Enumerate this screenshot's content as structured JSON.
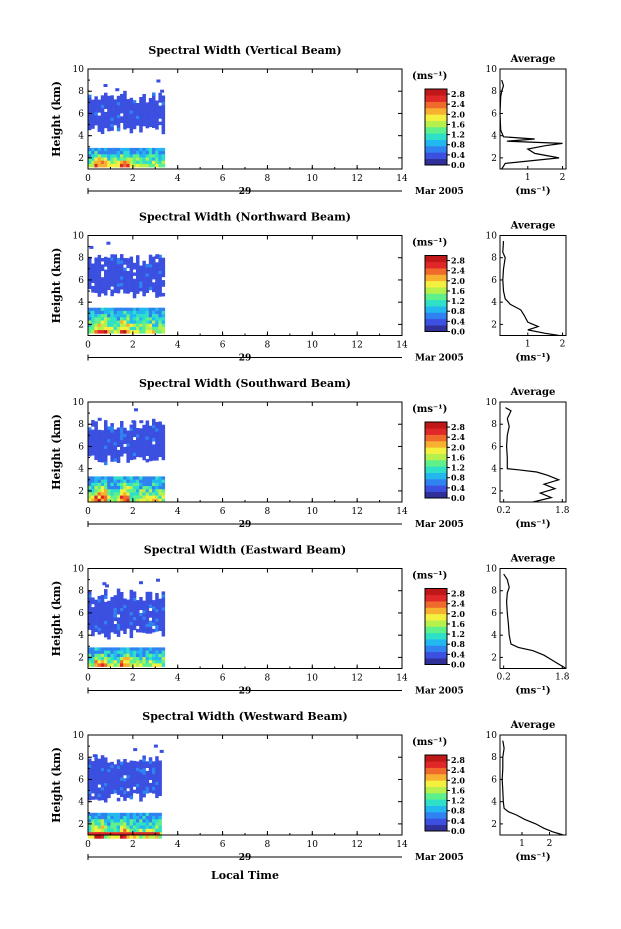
{
  "chart_data": {
    "type": "heatmap",
    "x_axis": {
      "label": "Local Time",
      "range": [
        0,
        14
      ],
      "ticks": [
        "0",
        "2",
        "4",
        "6",
        "8",
        "10",
        "12",
        "14"
      ],
      "date_label": "29",
      "month_label": "Mar 2005"
    },
    "y_axis": {
      "label": "Height (km)",
      "range": [
        1,
        10
      ],
      "ticks": [
        "2",
        "4",
        "6",
        "8",
        "10"
      ]
    },
    "colorbar": {
      "unit": "(ms⁻¹)",
      "ticks": [
        "2.8",
        "2.4",
        "2.0",
        "1.6",
        "1.2",
        "0.8",
        "0.4",
        "0.0"
      ],
      "range": [
        0,
        3.0
      ],
      "colors": [
        "#30309a",
        "#3b4fe0",
        "#2f82f0",
        "#23b7f0",
        "#2ee0c8",
        "#5ef08a",
        "#b6f04c",
        "#f4f040",
        "#f8b030",
        "#f06a2c",
        "#e02828",
        "#c01818"
      ]
    },
    "average_panel": {
      "title": "Average",
      "unit": "(ms⁻¹)",
      "y_ticks": [
        "2",
        "4",
        "6",
        "8",
        "10"
      ]
    },
    "panels": [
      {
        "title": "Spectral Width (Vertical Beam)",
        "avg_x_ticks": [
          "1",
          "2"
        ],
        "avg_x_range": [
          0.2,
          2.1
        ],
        "data_extent_hours": [
          0.0,
          3.3
        ],
        "upper_layer_km": [
          4.8,
          7.5
        ],
        "lower_layer_km": [
          1.2,
          2.9
        ],
        "avg_profile": [
          [
            1.0,
            0.25
          ],
          [
            1.5,
            0.35
          ],
          [
            2.0,
            1.9
          ],
          [
            2.4,
            1.2
          ],
          [
            2.8,
            1.0
          ],
          [
            3.1,
            1.5
          ],
          [
            3.3,
            2.0
          ],
          [
            3.5,
            0.4
          ],
          [
            3.7,
            1.2
          ],
          [
            3.9,
            0.3
          ],
          [
            4.5,
            0.22
          ],
          [
            6.0,
            0.2
          ],
          [
            7.5,
            0.22
          ],
          [
            8.0,
            0.25
          ],
          [
            8.5,
            0.3
          ],
          [
            9.0,
            0.25
          ]
        ]
      },
      {
        "title": "Spectral Width (Northward Beam)",
        "avg_x_ticks": [
          "1",
          "2"
        ],
        "avg_x_range": [
          0.2,
          2.1
        ],
        "data_extent_hours": [
          0.0,
          3.3
        ],
        "upper_layer_km": [
          5.0,
          7.8
        ],
        "lower_layer_km": [
          1.2,
          3.5
        ],
        "avg_profile": [
          [
            1.0,
            1.9
          ],
          [
            1.2,
            1.5
          ],
          [
            1.5,
            1.0
          ],
          [
            1.8,
            1.3
          ],
          [
            2.2,
            1.0
          ],
          [
            2.8,
            0.9
          ],
          [
            3.3,
            0.8
          ],
          [
            3.8,
            0.5
          ],
          [
            4.3,
            0.35
          ],
          [
            5.0,
            0.3
          ],
          [
            6.0,
            0.28
          ],
          [
            7.0,
            0.3
          ],
          [
            8.0,
            0.35
          ],
          [
            8.5,
            0.28
          ],
          [
            9.5,
            0.3
          ]
        ]
      },
      {
        "title": "Spectral Width (Southward Beam)",
        "avg_x_ticks": [
          "0.2",
          "1.8"
        ],
        "avg_x_range": [
          0.1,
          1.9
        ],
        "data_extent_hours": [
          0.0,
          3.3
        ],
        "upper_layer_km": [
          5.0,
          7.9
        ],
        "lower_layer_km": [
          1.2,
          3.3
        ],
        "avg_profile": [
          [
            1.0,
            1.0
          ],
          [
            1.4,
            1.5
          ],
          [
            1.8,
            1.2
          ],
          [
            2.2,
            1.6
          ],
          [
            2.6,
            1.3
          ],
          [
            3.0,
            1.7
          ],
          [
            3.4,
            1.4
          ],
          [
            3.7,
            1.1
          ],
          [
            3.9,
            0.6
          ],
          [
            4.0,
            0.3
          ],
          [
            5.0,
            0.3
          ],
          [
            6.0,
            0.28
          ],
          [
            7.0,
            0.3
          ],
          [
            7.8,
            0.35
          ],
          [
            8.5,
            0.3
          ],
          [
            9.2,
            0.4
          ],
          [
            9.5,
            0.25
          ]
        ]
      },
      {
        "title": "Spectral Width (Eastward Beam)",
        "avg_x_ticks": [
          "0.2",
          "1.8"
        ],
        "avg_x_range": [
          0.1,
          1.9
        ],
        "data_extent_hours": [
          0.0,
          3.3
        ],
        "upper_layer_km": [
          4.3,
          7.6
        ],
        "lower_layer_km": [
          1.2,
          2.9
        ],
        "avg_profile": [
          [
            1.0,
            1.9
          ],
          [
            1.4,
            1.7
          ],
          [
            1.8,
            1.5
          ],
          [
            2.2,
            1.3
          ],
          [
            2.6,
            1.0
          ],
          [
            2.9,
            0.6
          ],
          [
            3.2,
            0.4
          ],
          [
            4.0,
            0.35
          ],
          [
            5.0,
            0.33
          ],
          [
            6.0,
            0.3
          ],
          [
            7.0,
            0.28
          ],
          [
            7.8,
            0.3
          ],
          [
            8.3,
            0.35
          ],
          [
            9.0,
            0.3
          ],
          [
            9.5,
            0.2
          ]
        ]
      },
      {
        "title": "Spectral Width (Westward Beam)",
        "avg_x_ticks": [
          "1",
          "2"
        ],
        "avg_x_range": [
          0.2,
          2.6
        ],
        "data_extent_hours": [
          0.0,
          3.2
        ],
        "upper_layer_km": [
          4.5,
          7.9
        ],
        "lower_layer_km": [
          0.9,
          3.0
        ],
        "avg_profile": [
          [
            1.0,
            2.5
          ],
          [
            1.3,
            2.1
          ],
          [
            1.6,
            1.8
          ],
          [
            2.0,
            1.5
          ],
          [
            2.4,
            1.1
          ],
          [
            2.8,
            0.8
          ],
          [
            3.1,
            0.5
          ],
          [
            3.4,
            0.35
          ],
          [
            4.0,
            0.32
          ],
          [
            5.0,
            0.3
          ],
          [
            6.0,
            0.28
          ],
          [
            7.0,
            0.3
          ],
          [
            8.0,
            0.3
          ],
          [
            8.8,
            0.35
          ],
          [
            9.5,
            0.3
          ]
        ]
      }
    ]
  }
}
